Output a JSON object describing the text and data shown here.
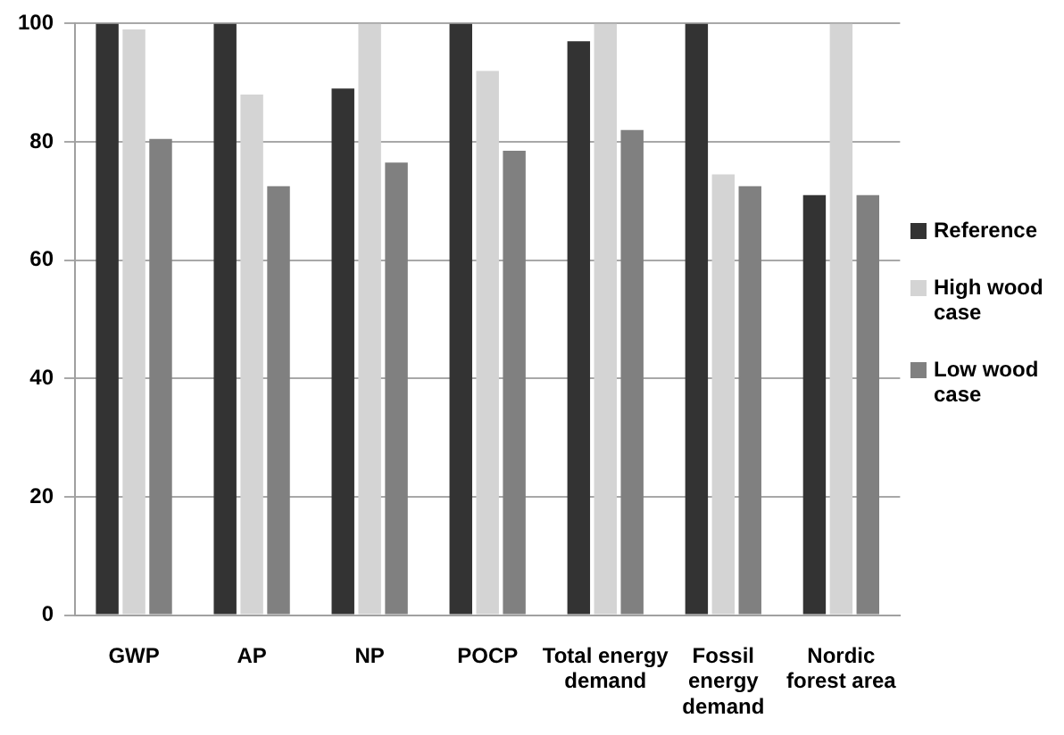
{
  "chart_data": {
    "type": "bar",
    "categories": [
      "GWP",
      "AP",
      "NP",
      "POCP",
      "Total energy demand",
      "Fossil energy demand",
      "Nordic forest area"
    ],
    "series": [
      {
        "name": "Reference",
        "color": "#333333",
        "values": [
          100,
          100,
          89,
          100,
          97,
          100,
          71
        ]
      },
      {
        "name": "High wood case",
        "color": "#d4d4d4",
        "values": [
          99,
          88,
          100,
          92,
          100,
          74.5,
          100
        ]
      },
      {
        "name": "Low wood case",
        "color": "#808080",
        "values": [
          80.5,
          72.5,
          76.5,
          78.5,
          82,
          72.5,
          71
        ]
      }
    ],
    "ylim": [
      0,
      100
    ],
    "yticks": [
      0,
      20,
      40,
      60,
      80,
      100
    ],
    "grid": "y",
    "legend": "right"
  }
}
